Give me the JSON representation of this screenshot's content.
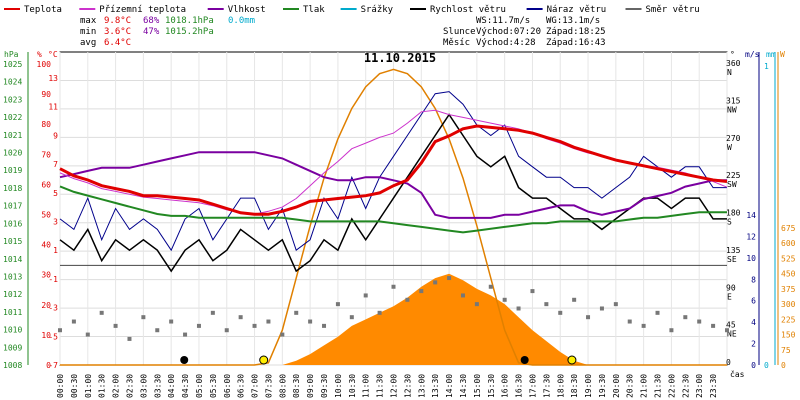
{
  "chart_data": {
    "type": "line",
    "title": "11.10.2015",
    "legend": [
      {
        "label": "Teplota",
        "color": "#e00000"
      },
      {
        "label": "Přízemní teplota",
        "color": "#cc33cc"
      },
      {
        "label": "Vlhkost",
        "color": "#7a00a0"
      },
      {
        "label": "Tlak",
        "color": "#228822"
      },
      {
        "label": "Srážky",
        "color": "#00aacc"
      },
      {
        "label": "Rychlost větru",
        "color": "#000000"
      },
      {
        "label": "Náraz větru",
        "color": "#00008b"
      },
      {
        "label": "Směr větru",
        "color": "#666666"
      }
    ],
    "stats": {
      "rows": [
        {
          "label": "max",
          "temp": "9.8°C",
          "hum": "68%",
          "press": "1018.1hPa",
          "rain": "0.0mm"
        },
        {
          "label": "min",
          "temp": "3.6°C",
          "hum": "47%",
          "press": "1015.2hPa",
          "rain": ""
        },
        {
          "label": "avg",
          "temp": "6.4°C",
          "hum": "",
          "press": "",
          "rain": ""
        }
      ],
      "ws": "WS:11.7m/s",
      "wg": "WG:13.1m/s",
      "slunce": "Slunce",
      "sun_rise": "Východ:07:20",
      "sun_set": "Západ:18:25",
      "mesic": "Měsíc",
      "moon_rise": "Východ:4:28",
      "moon_set": "Západ:16:43"
    },
    "axes": {
      "hpa_unit": "hPa",
      "hum_unit": "%",
      "temp_unit": "°C",
      "dir_unit": "°",
      "wind_unit": "m/s",
      "rain_unit": "mm",
      "solar_unit": "W",
      "time_unit": "čas",
      "pressure_ticks": [
        "1025",
        "1024",
        "1023",
        "1022",
        "1021",
        "1020",
        "1019",
        "1018",
        "1017",
        "1016",
        "1015",
        "1014",
        "1013",
        "1012",
        "1011",
        "1010",
        "1009",
        "1008"
      ],
      "humidity_ticks": [
        "100",
        "90",
        "80",
        "70",
        "60",
        "50",
        "40",
        "30",
        "20",
        "10",
        "0"
      ],
      "temperature_ticks": [
        "13",
        "11",
        "9",
        "7",
        "5",
        "3",
        "1",
        "-1",
        "-3",
        "-5",
        "-7"
      ],
      "direction_ticks": [
        {
          "deg": "360",
          "lbl": "N"
        },
        {
          "deg": "315",
          "lbl": "NW"
        },
        {
          "deg": "270",
          "lbl": "W"
        },
        {
          "deg": "225",
          "lbl": "SW"
        },
        {
          "deg": "180",
          "lbl": "S"
        },
        {
          "deg": "135",
          "lbl": "SE"
        },
        {
          "deg": "90",
          "lbl": "E"
        },
        {
          "deg": "45",
          "lbl": "NE"
        },
        {
          "deg": "0",
          "lbl": ""
        }
      ],
      "wind_ticks": [
        "14",
        "12",
        "10",
        "8",
        "6",
        "4",
        "2",
        "0"
      ],
      "rain_ticks": [
        "1",
        "0"
      ],
      "solar_ticks": [
        "675",
        "600",
        "525",
        "450",
        "375",
        "300",
        "225",
        "150",
        "75",
        "0"
      ],
      "time_ticks": [
        "00:00",
        "00:30",
        "01:00",
        "01:30",
        "02:00",
        "02:30",
        "03:00",
        "03:30",
        "04:00",
        "04:30",
        "05:00",
        "05:30",
        "06:00",
        "06:30",
        "07:00",
        "07:30",
        "08:00",
        "08:30",
        "09:00",
        "09:30",
        "10:00",
        "10:30",
        "11:00",
        "11:30",
        "12:00",
        "12:30",
        "13:00",
        "13:30",
        "14:00",
        "14:30",
        "15:00",
        "15:30",
        "16:00",
        "16:30",
        "17:00",
        "17:30",
        "18:00",
        "18:30",
        "19:00",
        "19:30",
        "20:00",
        "20:30",
        "21:00",
        "21:30",
        "22:00",
        "22:30",
        "23:00",
        "23:30"
      ]
    },
    "hours": [
      0,
      0.5,
      1,
      1.5,
      2,
      2.5,
      3,
      3.5,
      4,
      4.5,
      5,
      5.5,
      6,
      6.5,
      7,
      7.5,
      8,
      8.5,
      9,
      9.5,
      10,
      10.5,
      11,
      11.5,
      12,
      12.5,
      13,
      13.5,
      14,
      14.5,
      15,
      15.5,
      16,
      16.5,
      17,
      17.5,
      18,
      18.5,
      19,
      19.5,
      20,
      20.5,
      21,
      21.5,
      22,
      22.5,
      23,
      23.5,
      24
    ],
    "series": {
      "temperature_c": [
        6.8,
        6.3,
        6.0,
        5.6,
        5.4,
        5.2,
        4.9,
        4.9,
        4.8,
        4.7,
        4.6,
        4.3,
        4.0,
        3.7,
        3.6,
        3.6,
        3.8,
        4.1,
        4.5,
        4.6,
        4.7,
        4.8,
        4.9,
        5.1,
        5.6,
        6.0,
        7.2,
        8.7,
        9.1,
        9.6,
        9.8,
        9.7,
        9.6,
        9.5,
        9.3,
        9.0,
        8.7,
        8.3,
        8.0,
        7.7,
        7.4,
        7.2,
        7.0,
        6.8,
        6.6,
        6.4,
        6.2,
        6.0,
        5.9
      ],
      "ground_temperature_c": [
        6.5,
        6.1,
        5.8,
        5.4,
        5.2,
        5.0,
        4.8,
        4.7,
        4.6,
        4.5,
        4.4,
        4.2,
        3.9,
        3.7,
        3.6,
        3.8,
        4.1,
        4.7,
        5.6,
        6.5,
        7.3,
        8.2,
        8.6,
        9.0,
        9.3,
        10.0,
        10.8,
        10.9,
        10.6,
        10.4,
        10.2,
        10.0,
        9.8,
        9.6,
        9.3,
        8.9,
        8.6,
        8.2,
        7.9,
        7.7,
        7.4,
        7.2,
        7.0,
        6.9,
        6.7,
        6.5,
        6.2,
        5.9,
        5.5
      ],
      "humidity_pct": [
        60,
        61,
        62,
        63,
        63,
        63,
        64,
        65,
        66,
        67,
        68,
        68,
        68,
        68,
        68,
        67,
        66,
        64,
        62,
        60,
        59,
        59,
        60,
        60,
        59,
        58,
        55,
        48,
        47,
        47,
        47,
        47,
        48,
        48,
        49,
        50,
        51,
        51,
        49,
        48,
        49,
        50,
        53,
        54,
        55,
        57,
        58,
        59,
        59
      ],
      "pressure_hpa": [
        1017.7,
        1017.4,
        1017.2,
        1017.0,
        1016.8,
        1016.6,
        1016.4,
        1016.2,
        1016.1,
        1016.1,
        1016.0,
        1016.0,
        1016.0,
        1016.0,
        1016.0,
        1016.0,
        1016.0,
        1015.9,
        1015.8,
        1015.8,
        1015.8,
        1015.8,
        1015.8,
        1015.8,
        1015.7,
        1015.6,
        1015.5,
        1015.4,
        1015.3,
        1015.2,
        1015.3,
        1015.4,
        1015.5,
        1015.6,
        1015.7,
        1015.7,
        1015.8,
        1015.8,
        1015.8,
        1015.8,
        1015.8,
        1015.9,
        1016.0,
        1016.0,
        1016.1,
        1016.2,
        1016.3,
        1016.3,
        1016.3
      ],
      "rain_mm": [
        0,
        0
      ],
      "wind_speed_ms": [
        6,
        5.5,
        6.5,
        5,
        6,
        5.5,
        6,
        5.5,
        4.5,
        5.5,
        6,
        5,
        5.5,
        6.5,
        6,
        5.5,
        6,
        4.5,
        5,
        6,
        5.5,
        7,
        6,
        7,
        8,
        9,
        10,
        11,
        12,
        11,
        10,
        9.5,
        10,
        8.5,
        8,
        8,
        7.5,
        7,
        7,
        6.5,
        7,
        7.5,
        8,
        8,
        7.5,
        8,
        8,
        7,
        7
      ],
      "wind_gust_ms": [
        7,
        6.5,
        8,
        6,
        7.5,
        6.5,
        7,
        6.5,
        5.5,
        7,
        7.5,
        6,
        7,
        8,
        8,
        6.5,
        7.5,
        5.5,
        6,
        8,
        7,
        9,
        7.5,
        9,
        10,
        11,
        12,
        13,
        13.1,
        12.5,
        11.5,
        11,
        11.5,
        10,
        9.5,
        9,
        9,
        8.5,
        8.5,
        8,
        8.5,
        9,
        10,
        9.5,
        9,
        9.5,
        9.5,
        8.5,
        8.5
      ],
      "wind_dir_deg": [
        40,
        50,
        35,
        60,
        45,
        30,
        55,
        40,
        50,
        35,
        45,
        60,
        40,
        55,
        45,
        50,
        35,
        60,
        50,
        45,
        70,
        55,
        80,
        60,
        90,
        75,
        85,
        95,
        100,
        80,
        70,
        90,
        75,
        65,
        85,
        70,
        60,
        75,
        55,
        65,
        70,
        50,
        45,
        60,
        40,
        55,
        50,
        45,
        40
      ],
      "solar_w": [
        0,
        0,
        0,
        0,
        0,
        0,
        0,
        0,
        0,
        0,
        0,
        0,
        0,
        0,
        0,
        0,
        0,
        10,
        25,
        45,
        65,
        90,
        105,
        120,
        135,
        155,
        180,
        200,
        210,
        195,
        175,
        160,
        140,
        110,
        80,
        55,
        30,
        10,
        0,
        0,
        0,
        0,
        0,
        0,
        0,
        0,
        0,
        0,
        0
      ],
      "solar_theoretical_w": [
        0,
        0,
        0,
        0,
        0,
        0,
        0,
        0,
        0,
        0,
        0,
        0,
        0,
        0,
        0,
        5,
        80,
        200,
        320,
        430,
        520,
        590,
        640,
        670,
        680,
        670,
        640,
        590,
        520,
        430,
        320,
        200,
        80,
        5,
        0,
        0,
        0,
        0,
        0,
        0,
        0,
        0,
        0,
        0,
        0,
        0,
        0,
        0,
        0
      ]
    },
    "ylim": {
      "temperature": [
        -7,
        15
      ],
      "humidity": [
        0,
        100
      ],
      "pressure": [
        1008,
        1025
      ],
      "wind": [
        0,
        15
      ],
      "direction": [
        0,
        360
      ],
      "solar": [
        0,
        720
      ]
    },
    "markers": {
      "sunrise_h": 7.33,
      "sunset_h": 18.42,
      "moonrise_h": 4.47,
      "moonset_h": 16.72
    },
    "grid": true
  }
}
